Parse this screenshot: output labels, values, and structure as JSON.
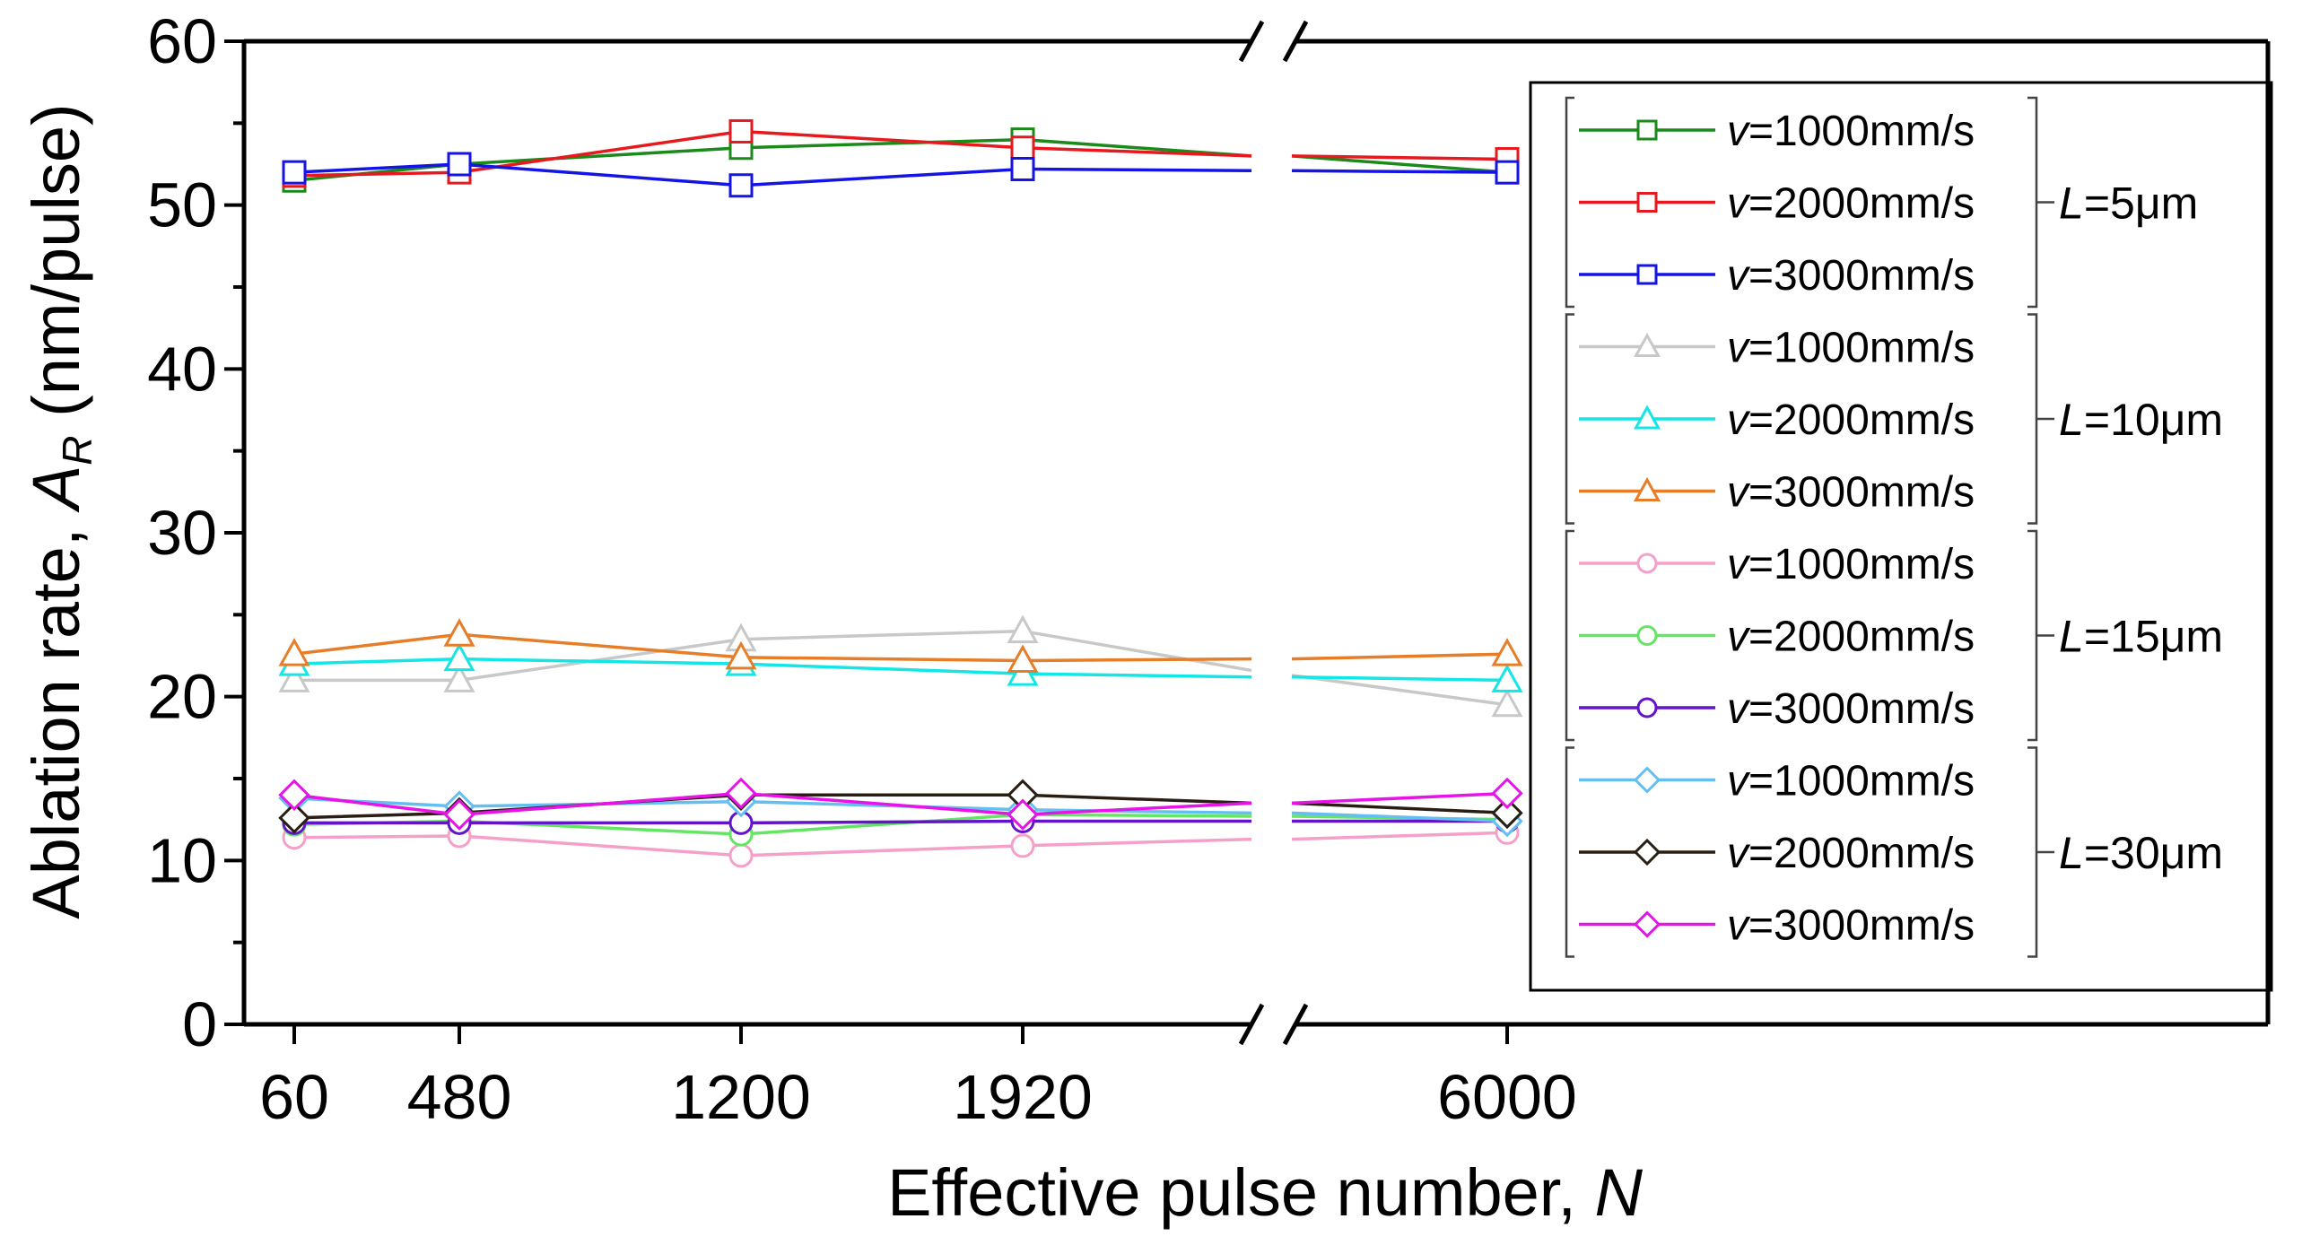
{
  "chart_data": {
    "type": "line",
    "xlabel": "Effective pulse number, ",
    "xlabel_var": "N",
    "ylabel": "Ablation rate, ",
    "ylabel_var": "A",
    "ylabel_sub": "R",
    "ylabel_unit": " (nm/pulse)",
    "x_ticks": [
      "60",
      "480",
      "1200",
      "1920",
      "6000"
    ],
    "x_axis_break": "between 1920 and 6000",
    "ylim": [
      0,
      60
    ],
    "y_ticks": [
      "0",
      "10",
      "20",
      "30",
      "40",
      "50",
      "60"
    ],
    "legend_position": "right",
    "groups": [
      {
        "label_var": "L",
        "label_rest": "=5μm",
        "series_indices": [
          0,
          1,
          2
        ]
      },
      {
        "label_var": "L",
        "label_rest": "=10μm",
        "series_indices": [
          3,
          4,
          5
        ]
      },
      {
        "label_var": "L",
        "label_rest": "=15μm",
        "series_indices": [
          6,
          7,
          8
        ]
      },
      {
        "label_var": "L",
        "label_rest": "=30μm",
        "series_indices": [
          9,
          10,
          11
        ]
      }
    ],
    "series": [
      {
        "name_var": "v",
        "name_rest": "=1000mm/s",
        "group": "L=5μm",
        "marker": "square",
        "color": "#1b8a1b",
        "values": [
          51.5,
          52.5,
          53.5,
          54.0,
          52.0
        ],
        "break_values": [
          53.0,
          53.0
        ]
      },
      {
        "name_var": "v",
        "name_rest": "=2000mm/s",
        "group": "L=5μm",
        "marker": "square",
        "color": "#e6191e",
        "values": [
          51.8,
          52.0,
          54.5,
          53.5,
          52.8
        ],
        "break_values": [
          53.0,
          53.0
        ]
      },
      {
        "name_var": "v",
        "name_rest": "=3000mm/s",
        "group": "L=5μm",
        "marker": "square",
        "color": "#1414e6",
        "values": [
          52.0,
          52.5,
          51.2,
          52.2,
          52.0
        ],
        "break_values": [
          52.1,
          52.1
        ]
      },
      {
        "name_var": "v",
        "name_rest": "=1000mm/s",
        "group": "L=10μm",
        "marker": "triangle",
        "color": "#c8c8c8",
        "values": [
          21.0,
          21.0,
          23.5,
          24.0,
          19.5
        ],
        "break_values": [
          21.6,
          21.3
        ]
      },
      {
        "name_var": "v",
        "name_rest": "=2000mm/s",
        "group": "L=10μm",
        "marker": "triangle",
        "color": "#14e6e6",
        "values": [
          22.0,
          22.3,
          22.0,
          21.4,
          21.0
        ],
        "break_values": [
          21.2,
          21.2
        ]
      },
      {
        "name_var": "v",
        "name_rest": "=3000mm/s",
        "group": "L=10μm",
        "marker": "triangle",
        "color": "#e67d28",
        "values": [
          22.6,
          23.8,
          22.4,
          22.2,
          22.6
        ],
        "break_values": [
          22.3,
          22.3
        ]
      },
      {
        "name_var": "v",
        "name_rest": "=1000mm/s",
        "group": "L=15μm",
        "marker": "circle",
        "color": "#f5a0c8",
        "values": [
          11.4,
          11.5,
          10.3,
          10.9,
          11.7
        ],
        "break_values": [
          11.3,
          11.3
        ]
      },
      {
        "name_var": "v",
        "name_rest": "=2000mm/s",
        "group": "L=15μm",
        "marker": "circle",
        "color": "#64e664",
        "values": [
          12.2,
          12.4,
          11.6,
          12.8,
          12.5
        ],
        "break_values": [
          12.7,
          12.7
        ]
      },
      {
        "name_var": "v",
        "name_rest": "=3000mm/s",
        "group": "L=15μm",
        "marker": "circle",
        "color": "#6414c8",
        "values": [
          12.3,
          12.3,
          12.3,
          12.4,
          12.4
        ],
        "break_values": [
          12.4,
          12.4
        ]
      },
      {
        "name_var": "v",
        "name_rest": "=1000mm/s",
        "group": "L=30μm",
        "marker": "diamond",
        "color": "#64bef0",
        "values": [
          13.8,
          13.3,
          13.6,
          13.1,
          12.4
        ],
        "break_values": [
          12.9,
          12.9
        ]
      },
      {
        "name_var": "v",
        "name_rest": "=2000mm/s",
        "group": "L=30μm",
        "marker": "diamond",
        "color": "#281e14",
        "values": [
          12.6,
          12.9,
          14.0,
          14.0,
          12.9
        ],
        "break_values": [
          13.5,
          13.5
        ]
      },
      {
        "name_var": "v",
        "name_rest": "=3000mm/s",
        "group": "L=30μm",
        "marker": "diamond",
        "color": "#e614e6",
        "values": [
          14.0,
          12.8,
          14.1,
          12.8,
          14.1
        ],
        "break_values": [
          13.5,
          13.5
        ]
      }
    ]
  }
}
